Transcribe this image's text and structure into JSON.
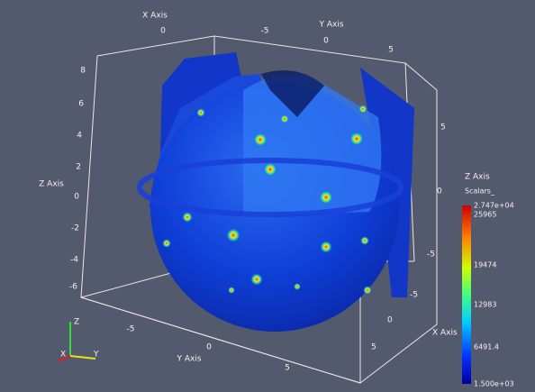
{
  "top_axes": {
    "x_title": "X Axis",
    "x_ticks": [
      "0",
      "-5"
    ],
    "y_title": "Y Axis",
    "y_ticks": [
      "0",
      "5"
    ]
  },
  "left_axis": {
    "title": "Z Axis",
    "ticks": [
      "8",
      "6",
      "4",
      "2",
      "0",
      "-2",
      "-4",
      "-6"
    ]
  },
  "right_axis": {
    "title": "Z Axis",
    "ticks": [
      "5",
      "0",
      "-5"
    ]
  },
  "bottom_right_axis": {
    "title": "X Axis",
    "ticks": [
      "-5",
      "0",
      "5"
    ]
  },
  "bottom_axis": {
    "title": "Y Axis",
    "ticks": [
      "-5",
      "0",
      "5"
    ]
  },
  "colorbar": {
    "title": "Scalars_",
    "labels": [
      "2.747e+04",
      "25965",
      "19474",
      "12983",
      "6491.4",
      "1.500e+03"
    ]
  },
  "orientation": {
    "z": "Z",
    "x": "X",
    "y": "Y"
  }
}
